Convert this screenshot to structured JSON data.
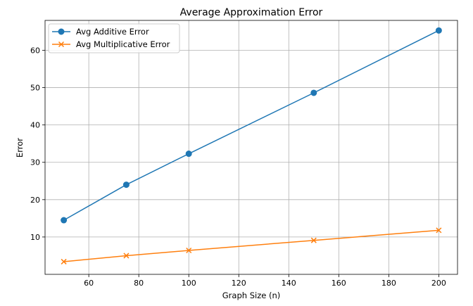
{
  "chart_data": {
    "type": "line",
    "title": "Average Approximation Error",
    "xlabel": "Graph Size (n)",
    "ylabel": "Error",
    "xlim": [
      42.5,
      207.5
    ],
    "ylim": [
      0.0,
      68.0
    ],
    "xticks": [
      60,
      80,
      100,
      120,
      140,
      160,
      180,
      200
    ],
    "yticks": [
      10,
      20,
      30,
      40,
      50,
      60
    ],
    "grid": true,
    "legend_position": "top-left",
    "x": [
      50,
      75,
      100,
      150,
      200
    ],
    "series": [
      {
        "name": "Avg Additive Error",
        "values": [
          14.5,
          24.0,
          32.3,
          48.6,
          65.3
        ],
        "color": "#1f77b4",
        "marker": "circle"
      },
      {
        "name": "Avg Multiplicative Error",
        "values": [
          3.4,
          5.0,
          6.4,
          9.1,
          11.8
        ],
        "color": "#ff7f0e",
        "marker": "x"
      }
    ]
  }
}
